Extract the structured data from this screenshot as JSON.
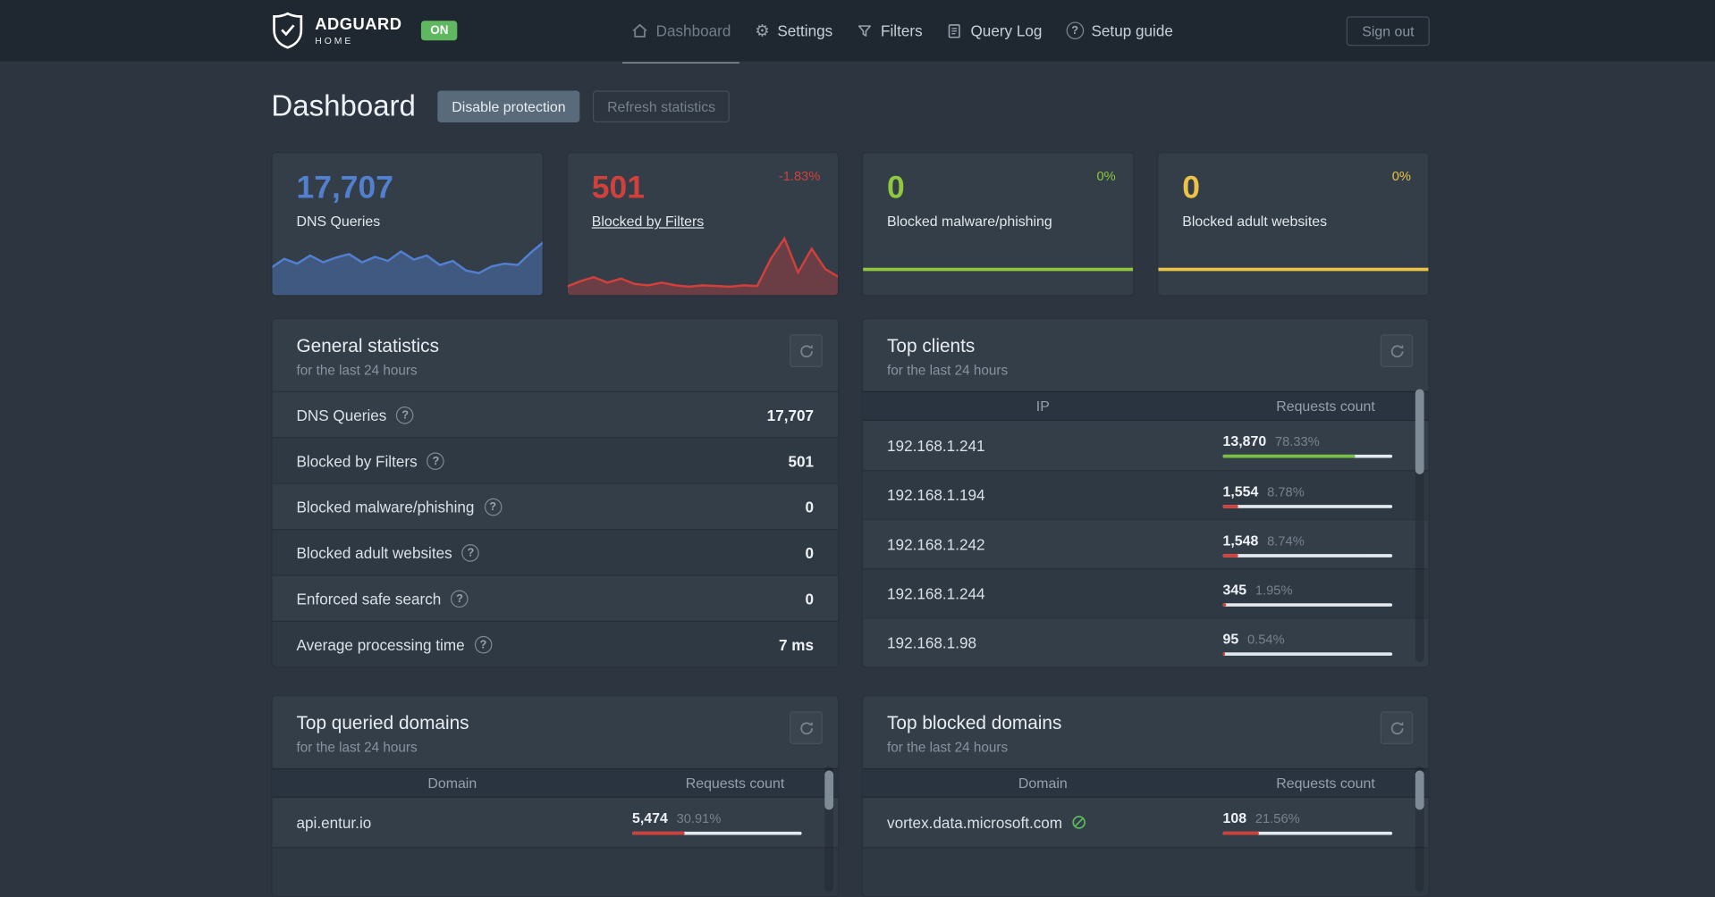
{
  "colors": {
    "accent_blue": "#527fce",
    "accent_red": "#d2403c",
    "accent_green": "#8fc73e",
    "accent_yellow": "#ecc347",
    "bar_green": "#79c142",
    "bar_red": "#d1403b",
    "on_badge_green": "#5fb760",
    "tracker_green": "#5cb85c"
  },
  "navbar": {
    "brand_name": "ADGUARD",
    "brand_sub": "HOME",
    "status_badge": "ON",
    "items": [
      {
        "label": "Dashboard"
      },
      {
        "label": "Settings"
      },
      {
        "label": "Filters"
      },
      {
        "label": "Query Log"
      },
      {
        "label": "Setup guide"
      }
    ],
    "sign_out_label": "Sign out"
  },
  "page_header": {
    "title": "Dashboard",
    "disable_protection_label": "Disable protection",
    "refresh_statistics_label": "Refresh statistics"
  },
  "stat_cards": [
    {
      "value": "17,707",
      "label": "DNS Queries",
      "trend": "",
      "color": "#527fce",
      "spark": [
        42,
        55,
        48,
        60,
        50,
        57,
        62,
        50,
        58,
        52,
        66,
        54,
        60,
        46,
        52,
        38,
        34,
        44,
        48,
        46,
        64,
        80
      ]
    },
    {
      "value": "501",
      "label": "Blocked by Filters",
      "trend": "-1.83%",
      "color": "#d2403c",
      "spark": [
        14,
        22,
        28,
        20,
        26,
        18,
        16,
        20,
        16,
        14,
        16,
        15,
        14,
        16,
        15,
        55,
        85,
        35,
        70,
        40,
        28
      ]
    },
    {
      "value": "0",
      "label": "Blocked malware/phishing",
      "trend": "0%",
      "color": "#8fc73e"
    },
    {
      "value": "0",
      "label": "Blocked adult websites",
      "trend": "0%",
      "color": "#ecc347"
    }
  ],
  "general_statistics": {
    "title": "General statistics",
    "subtitle": "for the last 24 hours",
    "rows": [
      {
        "label": "DNS Queries",
        "value": "17,707"
      },
      {
        "label": "Blocked by Filters",
        "value": "501"
      },
      {
        "label": "Blocked malware/phishing",
        "value": "0"
      },
      {
        "label": "Blocked adult websites",
        "value": "0"
      },
      {
        "label": "Enforced safe search",
        "value": "0"
      },
      {
        "label": "Average processing time",
        "value": "7 ms"
      }
    ]
  },
  "top_clients": {
    "title": "Top clients",
    "subtitle": "for the last 24 hours",
    "columns": {
      "left": "IP",
      "right": "Requests count"
    },
    "rows": [
      {
        "ip": "192.168.1.241",
        "count": "13,870",
        "percent": "78.33%",
        "pct": 78.33,
        "bar": "green"
      },
      {
        "ip": "192.168.1.194",
        "count": "1,554",
        "percent": "8.78%",
        "pct": 8.78,
        "bar": "red"
      },
      {
        "ip": "192.168.1.242",
        "count": "1,548",
        "percent": "8.74%",
        "pct": 8.74,
        "bar": "red"
      },
      {
        "ip": "192.168.1.244",
        "count": "345",
        "percent": "1.95%",
        "pct": 1.95,
        "bar": "red"
      },
      {
        "ip": "192.168.1.98",
        "count": "95",
        "percent": "0.54%",
        "pct": 0.54,
        "bar": "red"
      }
    ]
  },
  "top_queried_domains": {
    "title": "Top queried domains",
    "subtitle": "for the last 24 hours",
    "columns": {
      "left": "Domain",
      "right": "Requests count"
    },
    "rows": [
      {
        "domain": "api.entur.io",
        "count": "5,474",
        "percent": "30.91%",
        "pct": 30.91,
        "bar": "red"
      }
    ]
  },
  "top_blocked_domains": {
    "title": "Top blocked domains",
    "subtitle": "for the last 24 hours",
    "columns": {
      "left": "Domain",
      "right": "Requests count"
    },
    "rows": [
      {
        "domain": "vortex.data.microsoft.com",
        "count": "108",
        "percent": "21.56%",
        "pct": 21.56,
        "bar": "red"
      }
    ]
  },
  "icons": {
    "help_glyph": "?",
    "gear_glyph": "⚙"
  }
}
